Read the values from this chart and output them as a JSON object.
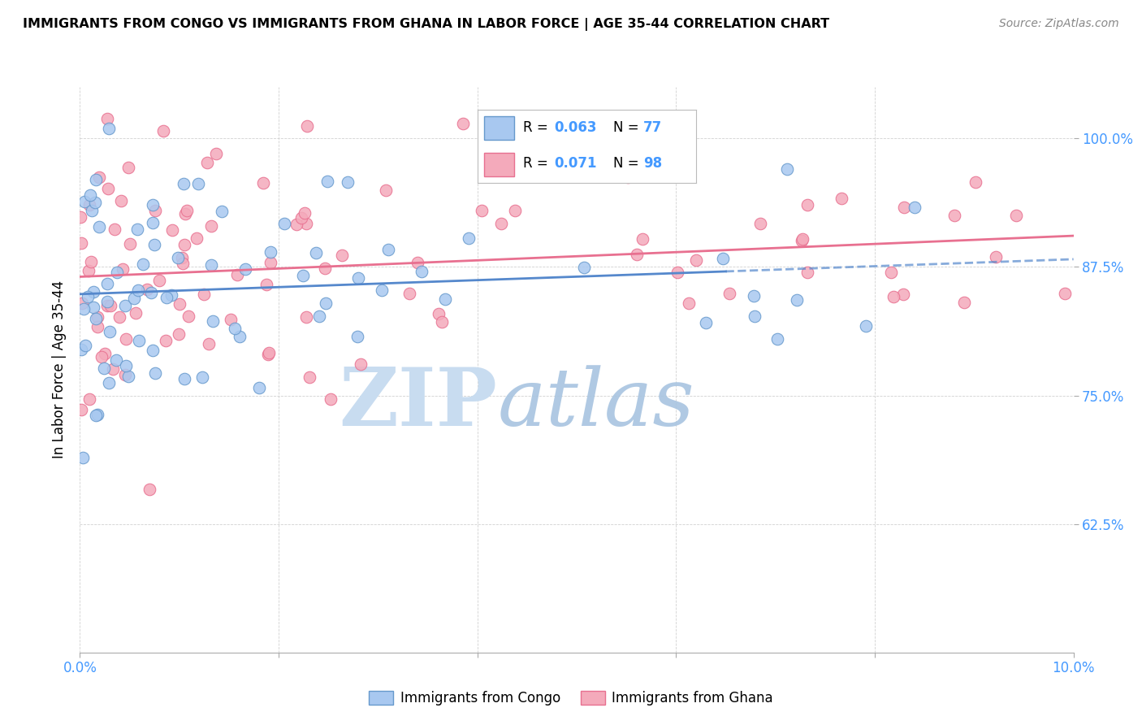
{
  "title": "IMMIGRANTS FROM CONGO VS IMMIGRANTS FROM GHANA IN LABOR FORCE | AGE 35-44 CORRELATION CHART",
  "source": "Source: ZipAtlas.com",
  "ylabel": "In Labor Force | Age 35-44",
  "xlim": [
    0.0,
    0.1
  ],
  "ylim": [
    0.5,
    1.05
  ],
  "yticks": [
    0.625,
    0.75,
    0.875,
    1.0
  ],
  "ytick_labels": [
    "62.5%",
    "75.0%",
    "87.5%",
    "100.0%"
  ],
  "xtick_vals": [
    0.0,
    0.02,
    0.04,
    0.06,
    0.08,
    0.1
  ],
  "xtick_labels": [
    "0.0%",
    "",
    "",
    "",
    "",
    "10.0%"
  ],
  "color_congo": "#A8C8F0",
  "color_ghana": "#F4AABB",
  "edge_congo": "#6699CC",
  "edge_ghana": "#E87090",
  "trendline_congo_color": "#5588CC",
  "trendline_ghana_color": "#E87090",
  "watermark_zip": "ZIP",
  "watermark_atlas": "atlas",
  "watermark_color_zip": "#C8DCF0",
  "watermark_color_atlas": "#A8C4E0",
  "tick_color": "#4499FF",
  "n_congo": 77,
  "n_ghana": 98,
  "legend_label1": "Immigrants from Congo",
  "legend_label2": "Immigrants from Ghana"
}
